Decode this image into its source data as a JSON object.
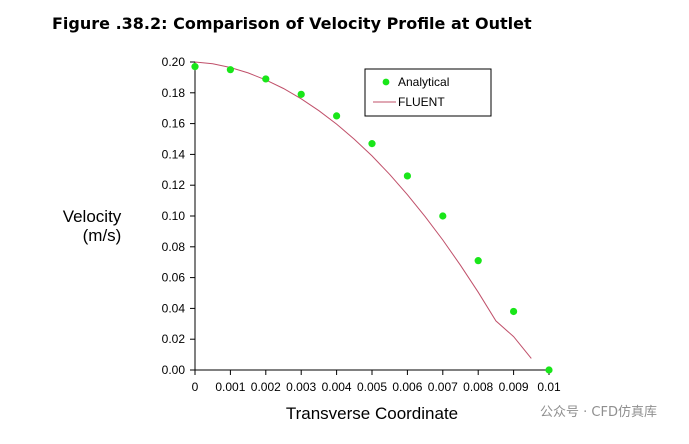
{
  "figure_title": "Figure .38.2: Comparison of Velocity Profile at Outlet",
  "watermark": "公众号 · CFD仿真库",
  "colors": {
    "analytical": "#19e619",
    "fluent": "#c0506a",
    "axis": "#000000"
  },
  "chart_data": {
    "type": "line",
    "title": "",
    "xlabel": "Transverse Coordinate",
    "ylabel_lines": [
      "Velocity",
      "(m/s)"
    ],
    "xlim": [
      0,
      0.01
    ],
    "ylim": [
      0,
      0.2
    ],
    "x_ticks": [
      0,
      0.001,
      0.002,
      0.003,
      0.004,
      0.005,
      0.006,
      0.007,
      0.008,
      0.009,
      0.01
    ],
    "x_tick_labels": [
      "0",
      "0.001",
      "0.002",
      "0.003",
      "0.004",
      "0.005",
      "0.006",
      "0.007",
      "0.008",
      "0.009",
      "0.01"
    ],
    "y_ticks": [
      0,
      0.02,
      0.04,
      0.06,
      0.08,
      0.1,
      0.12,
      0.14,
      0.16,
      0.18,
      0.2
    ],
    "y_tick_labels": [
      "0.00",
      "0.02",
      "0.04",
      "0.06",
      "0.08",
      "0.10",
      "0.12",
      "0.14",
      "0.16",
      "0.18",
      "0.20"
    ],
    "legend_position": "top-right",
    "series": [
      {
        "name": "Analytical",
        "style": "markers",
        "x": [
          0,
          0.001,
          0.002,
          0.003,
          0.004,
          0.005,
          0.006,
          0.007,
          0.008,
          0.009,
          0.01
        ],
        "y": [
          0.197,
          0.195,
          0.189,
          0.179,
          0.165,
          0.147,
          0.126,
          0.1,
          0.071,
          0.038,
          0.0
        ]
      },
      {
        "name": "FLUENT",
        "style": "line",
        "x": [
          0,
          0.0005,
          0.001,
          0.0015,
          0.002,
          0.0025,
          0.003,
          0.0035,
          0.004,
          0.0045,
          0.005,
          0.0055,
          0.006,
          0.0065,
          0.007,
          0.0075,
          0.008,
          0.0085,
          0.009,
          0.0095
        ],
        "y": [
          0.2,
          0.1989,
          0.1964,
          0.1929,
          0.1884,
          0.1828,
          0.1761,
          0.1684,
          0.1597,
          0.1499,
          0.139,
          0.127,
          0.1138,
          0.0996,
          0.0844,
          0.068,
          0.0505,
          0.0319,
          0.0217,
          0.0075
        ]
      }
    ]
  }
}
